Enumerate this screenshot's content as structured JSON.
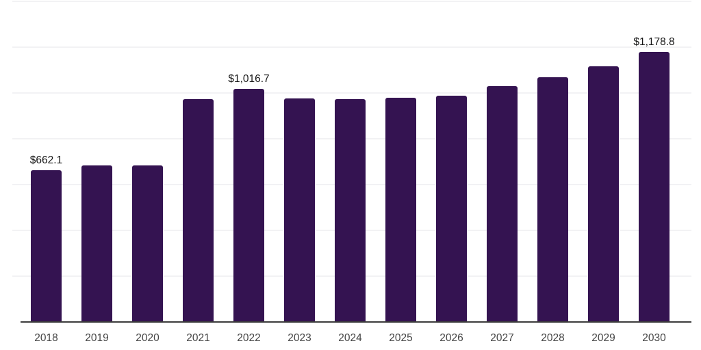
{
  "chart_data": {
    "type": "bar",
    "title": "",
    "xlabel": "",
    "ylabel": "",
    "categories": [
      "2018",
      "2019",
      "2020",
      "2021",
      "2022",
      "2023",
      "2024",
      "2025",
      "2026",
      "2027",
      "2028",
      "2029",
      "2030"
    ],
    "values": [
      662.1,
      681.0,
      681.0,
      973.0,
      1016.7,
      975.0,
      972.0,
      979.0,
      988.0,
      1029.0,
      1068.0,
      1116.0,
      1178.8
    ],
    "data_labels": {
      "2018": "$662.1",
      "2022": "$1,016.7",
      "2030": "$1,178.8"
    },
    "ylim": [
      0,
      1400
    ],
    "grid_step": 200,
    "grid_on": true,
    "legend": "none",
    "colors": {
      "bar": "#341351",
      "gridline": "#f2f2f4",
      "axis_line": "#3c3c3c",
      "data_label_text": "#161616",
      "tick_label_text": "#454545",
      "background": "#ffffff"
    }
  }
}
